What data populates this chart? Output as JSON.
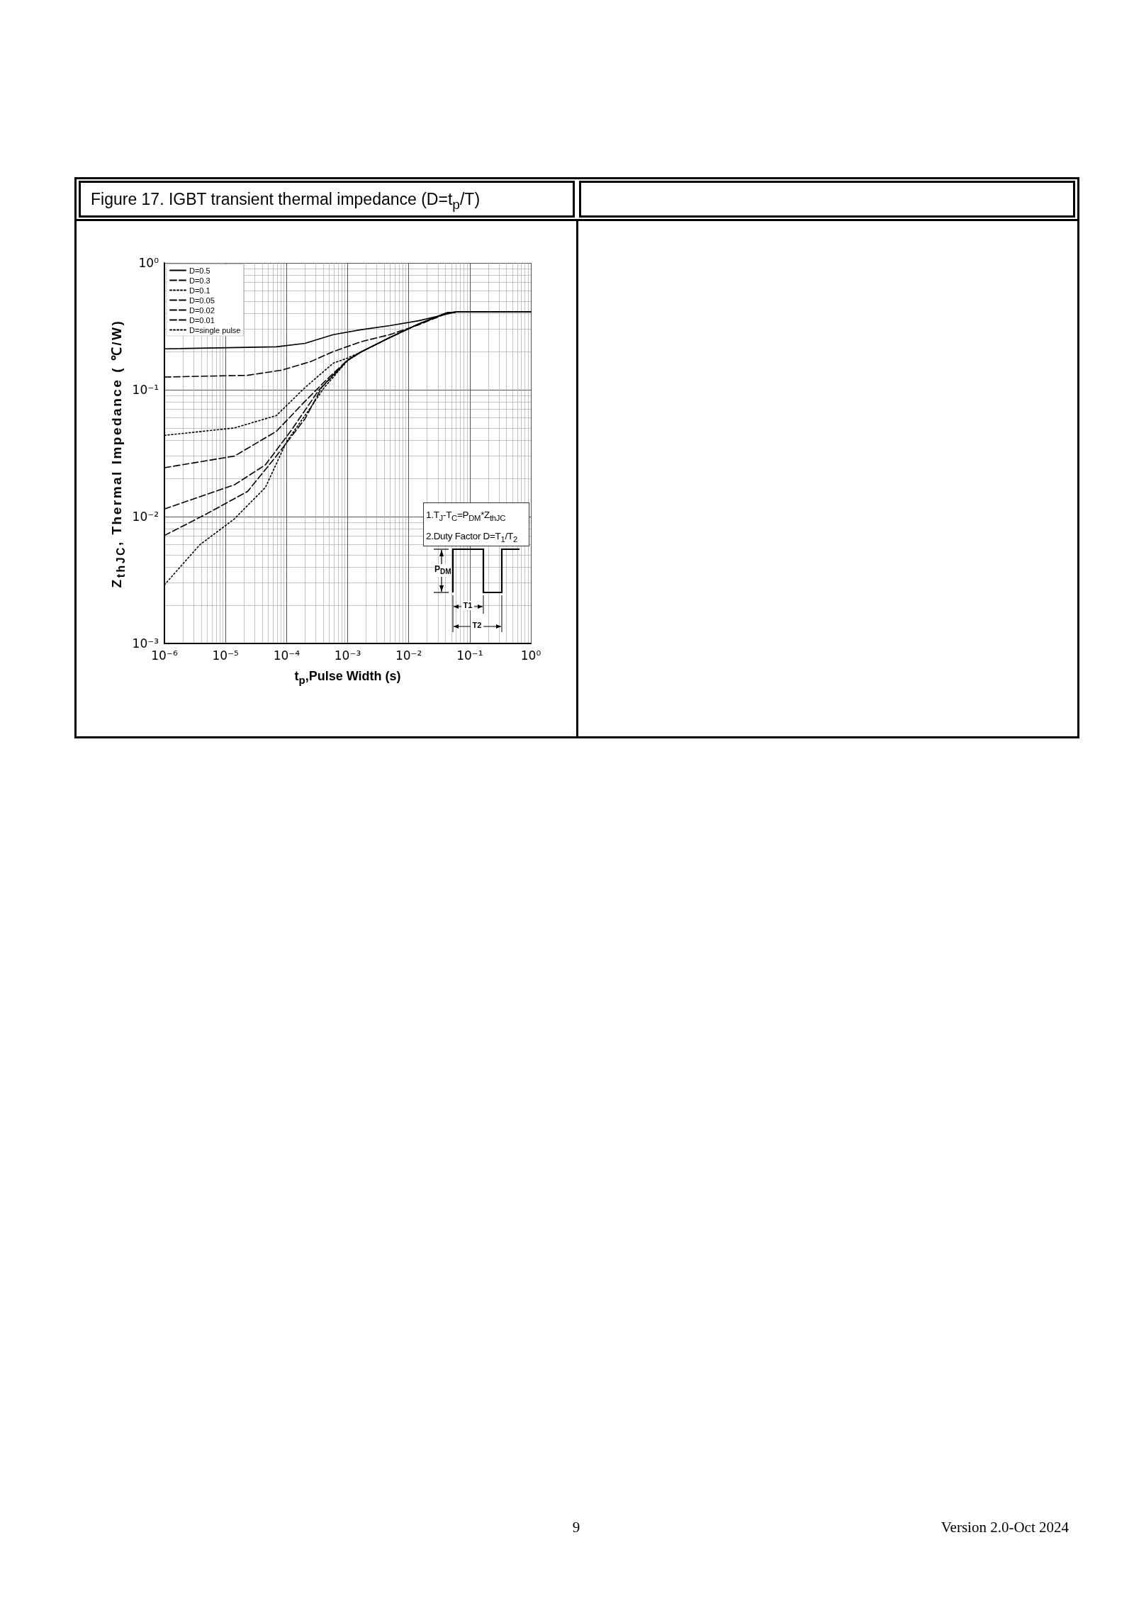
{
  "chart_data": {
    "type": "line",
    "title": "Figure 17. IGBT transient thermal impedance (D=t$_{p}$/T)",
    "xlabel": "t$_{p}$,Pulse Width (s)",
    "ylabel": "Z$_{thJC}$, Thermal Impedance ( ℃/W)",
    "log": "xy",
    "grid": true,
    "legend": "top left",
    "marker": "none",
    "xlim": [
      1e-06,
      1
    ],
    "ylim": [
      0.001,
      1
    ],
    "xticks": [
      {
        "value": 1e-06,
        "label": "10⁻⁶"
      },
      {
        "value": 1e-05,
        "label": "10⁻⁵"
      },
      {
        "value": 0.0001,
        "label": "10⁻⁴"
      },
      {
        "value": 0.001,
        "label": "10⁻³"
      },
      {
        "value": 0.01,
        "label": "10⁻²"
      },
      {
        "value": 0.1,
        "label": "10⁻¹"
      },
      {
        "value": 1,
        "label": "10⁰"
      }
    ],
    "yticks": [
      {
        "value": 0.001,
        "label": "10⁻³"
      },
      {
        "value": 0.01,
        "label": "10⁻²"
      },
      {
        "value": 0.1,
        "label": "10⁻¹"
      },
      {
        "value": 1,
        "label": "10⁰"
      }
    ],
    "series": [
      {
        "name": "D=0.5",
        "color": "#000000",
        "line_style": "solid",
        "x": [
          1e-06,
          6.8e-05,
          0.0002,
          0.00058,
          0.0017,
          0.0049,
          0.0145,
          0.042,
          0.06,
          1
        ],
        "values": [
          0.21,
          0.218,
          0.232,
          0.272,
          0.298,
          0.32,
          0.35,
          0.395,
          0.41,
          0.41
        ]
      },
      {
        "name": "D=0.3",
        "color": "#000000",
        "line_style": "dashed",
        "x": [
          1e-06,
          2.3e-05,
          8.5e-05,
          0.00025,
          0.00058,
          0.0017,
          0.0049,
          0.0145,
          0.042,
          0.06,
          1
        ],
        "values": [
          0.126,
          0.13,
          0.143,
          0.167,
          0.2,
          0.24,
          0.272,
          0.325,
          0.4,
          0.41,
          0.41
        ]
      },
      {
        "name": "D=0.1",
        "color": "#000000",
        "line_style": "dotted",
        "x": [
          1e-06,
          1.4e-05,
          6.8e-05,
          0.0002,
          0.00058,
          0.001,
          0.0017,
          0.0049,
          0.0145,
          0.042,
          0.06,
          1
        ],
        "values": [
          0.0437,
          0.05,
          0.0626,
          0.104,
          0.162,
          0.178,
          0.2,
          0.258,
          0.33,
          0.404,
          0.41,
          0.41
        ]
      },
      {
        "name": "D=0.05",
        "color": "#000000",
        "line_style": "dashed",
        "x": [
          1e-06,
          1.4e-05,
          6.8e-05,
          0.0002,
          0.00042,
          0.001,
          0.0017,
          0.0049,
          0.0145,
          0.042,
          0.06,
          1
        ],
        "values": [
          0.0243,
          0.03,
          0.047,
          0.081,
          0.116,
          0.172,
          0.2,
          0.258,
          0.33,
          0.404,
          0.41,
          0.41
        ]
      },
      {
        "name": "D=0.02",
        "color": "#000000",
        "line_style": "dashed",
        "x": [
          1e-06,
          1.4e-05,
          4.5e-05,
          0.00012,
          0.00034,
          0.001,
          0.0017,
          0.0049,
          0.0145,
          0.042,
          0.06,
          1
        ],
        "values": [
          0.0115,
          0.0178,
          0.0256,
          0.048,
          0.1,
          0.171,
          0.2,
          0.258,
          0.33,
          0.404,
          0.41,
          0.41
        ]
      },
      {
        "name": "D=0.01",
        "color": "#000000",
        "line_style": "dashed",
        "x": [
          1e-06,
          4.7e-06,
          2.3e-05,
          6.8e-05,
          0.0002,
          0.00038,
          0.001,
          0.0017,
          0.0049,
          0.0145,
          0.042,
          0.06,
          1
        ],
        "values": [
          0.0071,
          0.0104,
          0.0158,
          0.03,
          0.059,
          0.105,
          0.17,
          0.2,
          0.258,
          0.33,
          0.404,
          0.41,
          0.41
        ]
      },
      {
        "name": "D=single pulse",
        "color": "#000000",
        "line_style": "dotted",
        "x": [
          1e-06,
          3.8e-06,
          1.4e-05,
          4.5e-05,
          0.0001,
          0.00025,
          0.00042,
          0.001,
          0.0017,
          0.0049,
          0.0145,
          0.042,
          0.06,
          1
        ],
        "values": [
          0.0029,
          0.006,
          0.0096,
          0.017,
          0.039,
          0.073,
          0.105,
          0.17,
          0.2,
          0.258,
          0.33,
          0.404,
          0.41,
          0.41
        ]
      }
    ],
    "annotations": [
      "1.T$_{J}$-T$_{C}$=P$_{DM}$*Z$_{thJC}$",
      "2.Duty Factor D=T$_{1}$/T$_{2}$",
      "P$_{DM}$",
      "T1",
      "T2",
      "9",
      "Version 2.0-Oct 2024"
    ]
  }
}
